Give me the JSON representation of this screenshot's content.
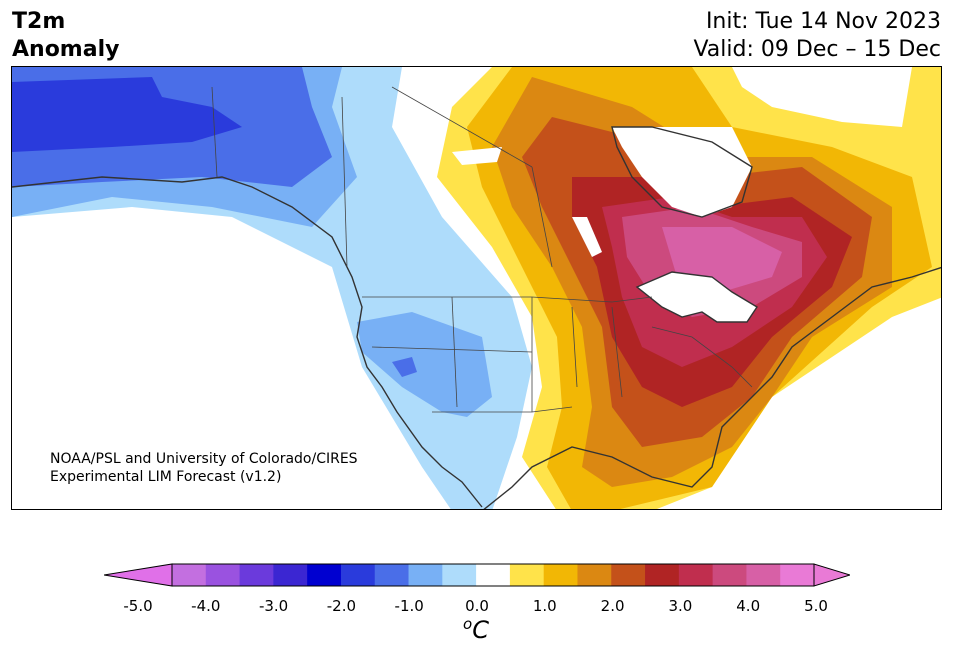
{
  "header": {
    "variable": "T2m",
    "quantity": "Anomaly",
    "init": "Init: Tue 14 Nov 2023",
    "valid": "Valid: 09 Dec – 15 Dec"
  },
  "credit": {
    "line1": "NOAA/PSL and University of Colorado/CIRES",
    "line2": "Experimental LIM Forecast (v1.2)"
  },
  "colorbar": {
    "unit": "C",
    "unit_prefix": "o",
    "ticks": [
      "-5.0",
      "-4.0",
      "-3.0",
      "-2.0",
      "-1.0",
      "0.0",
      "1.0",
      "2.0",
      "3.0",
      "4.0",
      "5.0"
    ],
    "bins": [
      {
        "range": "-5.0 to -4.5",
        "color": "#c36fe0"
      },
      {
        "range": "-4.5 to -4.0",
        "color": "#9a52e0"
      },
      {
        "range": "-4.0 to -3.5",
        "color": "#6b3adc"
      },
      {
        "range": "-3.5 to -3.0",
        "color": "#3b26d2"
      },
      {
        "range": "-3.0 to -2.5",
        "color": "#0000d0"
      },
      {
        "range": "-2.5 to -2.0",
        "color": "#2a3bdc"
      },
      {
        "range": "-2.0 to -1.5",
        "color": "#4a6ee8"
      },
      {
        "range": "-1.5 to -1.0",
        "color": "#78b0f5"
      },
      {
        "range": "-1.0 to -0.5",
        "color": "#aedcfb"
      },
      {
        "range": "-0.5 to 0.5",
        "color": "#ffffff"
      },
      {
        "range": "0.5 to 1.0",
        "color": "#ffe34a"
      },
      {
        "range": "1.0 to 1.5",
        "color": "#f2b705"
      },
      {
        "range": "1.5 to 2.0",
        "color": "#db8812"
      },
      {
        "range": "2.0 to 2.5",
        "color": "#c4511a"
      },
      {
        "range": "2.5 to 3.0",
        "color": "#b02424"
      },
      {
        "range": "3.0 to 3.5",
        "color": "#c02e4e"
      },
      {
        "range": "3.5 to 4.0",
        "color": "#cc4a7e"
      },
      {
        "range": "4.0 to 4.5",
        "color": "#d760a6"
      },
      {
        "range": "4.5 to 5.0",
        "color": "#e97ad6"
      }
    ],
    "under_color": "#e070e8",
    "over_color": "#e97ad6"
  },
  "map": {
    "region": "North America",
    "cold_anomaly_region": "Alaska and western Canada / US West",
    "warm_anomaly_region": "Central and eastern US and Canada"
  }
}
